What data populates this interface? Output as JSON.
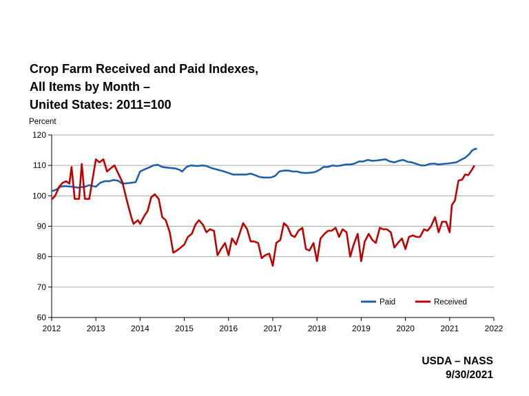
{
  "chart_data": {
    "type": "line",
    "title_lines": [
      "Crop Farm Received and Paid Indexes,",
      "All Items by Month –",
      "United States: 2011=100"
    ],
    "ylabel": "Percent",
    "xlim": [
      2012,
      2022
    ],
    "ylim": [
      60,
      120
    ],
    "x_ticks": [
      2012,
      2013,
      2014,
      2015,
      2016,
      2017,
      2018,
      2019,
      2020,
      2021,
      2022
    ],
    "y_ticks": [
      60,
      70,
      80,
      90,
      100,
      110,
      120
    ],
    "grid": "horizontal",
    "legend_placement": "bottom-right",
    "series": [
      {
        "name": "Paid",
        "color": "#1f5fa8",
        "points": [
          [
            2012.0,
            101.5
          ],
          [
            2012.1,
            102.0
          ],
          [
            2012.2,
            103.0
          ],
          [
            2012.3,
            103.2
          ],
          [
            2012.45,
            103.0
          ],
          [
            2012.6,
            102.7
          ],
          [
            2012.75,
            103.0
          ],
          [
            2012.85,
            103.5
          ],
          [
            2013.0,
            103.0
          ],
          [
            2013.1,
            104.3
          ],
          [
            2013.2,
            104.8
          ],
          [
            2013.3,
            104.8
          ],
          [
            2013.4,
            105.2
          ],
          [
            2013.5,
            105.0
          ],
          [
            2013.6,
            104.0
          ],
          [
            2013.75,
            104.2
          ],
          [
            2013.9,
            104.5
          ],
          [
            2014.0,
            108.0
          ],
          [
            2014.1,
            108.7
          ],
          [
            2014.2,
            109.3
          ],
          [
            2014.3,
            110.0
          ],
          [
            2014.4,
            110.2
          ],
          [
            2014.5,
            109.5
          ],
          [
            2014.65,
            109.2
          ],
          [
            2014.8,
            109.0
          ],
          [
            2014.9,
            108.5
          ],
          [
            2014.95,
            108.0
          ],
          [
            2015.05,
            109.5
          ],
          [
            2015.15,
            110.0
          ],
          [
            2015.3,
            109.8
          ],
          [
            2015.4,
            110.0
          ],
          [
            2015.5,
            109.8
          ],
          [
            2015.6,
            109.2
          ],
          [
            2015.75,
            108.6
          ],
          [
            2015.9,
            108.0
          ],
          [
            2016.0,
            107.5
          ],
          [
            2016.1,
            107.0
          ],
          [
            2016.2,
            107.0
          ],
          [
            2016.3,
            107.0
          ],
          [
            2016.4,
            107.0
          ],
          [
            2016.5,
            107.3
          ],
          [
            2016.6,
            106.8
          ],
          [
            2016.7,
            106.2
          ],
          [
            2016.8,
            106.0
          ],
          [
            2016.95,
            106.0
          ],
          [
            2017.05,
            106.5
          ],
          [
            2017.15,
            108.0
          ],
          [
            2017.25,
            108.3
          ],
          [
            2017.35,
            108.3
          ],
          [
            2017.45,
            108.0
          ],
          [
            2017.55,
            108.0
          ],
          [
            2017.65,
            107.6
          ],
          [
            2017.75,
            107.5
          ],
          [
            2017.85,
            107.6
          ],
          [
            2017.95,
            107.8
          ],
          [
            2018.05,
            108.5
          ],
          [
            2018.15,
            109.5
          ],
          [
            2018.25,
            109.5
          ],
          [
            2018.35,
            110.0
          ],
          [
            2018.45,
            109.8
          ],
          [
            2018.55,
            110.0
          ],
          [
            2018.65,
            110.3
          ],
          [
            2018.75,
            110.3
          ],
          [
            2018.85,
            110.6
          ],
          [
            2018.95,
            111.3
          ],
          [
            2019.05,
            111.3
          ],
          [
            2019.15,
            111.8
          ],
          [
            2019.25,
            111.5
          ],
          [
            2019.35,
            111.6
          ],
          [
            2019.45,
            111.8
          ],
          [
            2019.55,
            112.0
          ],
          [
            2019.65,
            111.3
          ],
          [
            2019.75,
            111.0
          ],
          [
            2019.85,
            111.5
          ],
          [
            2019.95,
            111.8
          ],
          [
            2020.05,
            111.2
          ],
          [
            2020.15,
            111.0
          ],
          [
            2020.25,
            110.5
          ],
          [
            2020.35,
            110.0
          ],
          [
            2020.45,
            110.0
          ],
          [
            2020.55,
            110.5
          ],
          [
            2020.65,
            110.6
          ],
          [
            2020.75,
            110.3
          ],
          [
            2020.85,
            110.5
          ],
          [
            2020.95,
            110.6
          ],
          [
            2021.05,
            110.8
          ],
          [
            2021.15,
            111.0
          ],
          [
            2021.25,
            111.8
          ],
          [
            2021.35,
            112.5
          ],
          [
            2021.45,
            113.8
          ],
          [
            2021.5,
            114.8
          ],
          [
            2021.55,
            115.3
          ],
          [
            2021.62,
            115.5
          ]
        ]
      },
      {
        "name": "Received",
        "color": "#c00000",
        "points": [
          [
            2012.0,
            98.8
          ],
          [
            2012.08,
            100.0
          ],
          [
            2012.17,
            103.0
          ],
          [
            2012.25,
            104.3
          ],
          [
            2012.33,
            104.8
          ],
          [
            2012.4,
            104.0
          ],
          [
            2012.45,
            109.5
          ],
          [
            2012.52,
            99.0
          ],
          [
            2012.62,
            99.0
          ],
          [
            2012.68,
            110.5
          ],
          [
            2012.75,
            99.0
          ],
          [
            2012.85,
            99.0
          ],
          [
            2013.0,
            112.0
          ],
          [
            2013.08,
            111.0
          ],
          [
            2013.17,
            112.0
          ],
          [
            2013.25,
            108.0
          ],
          [
            2013.33,
            109.0
          ],
          [
            2013.42,
            110.0
          ],
          [
            2013.5,
            107.5
          ],
          [
            2013.6,
            104.5
          ],
          [
            2013.7,
            98.5
          ],
          [
            2013.8,
            93.0
          ],
          [
            2013.85,
            90.8
          ],
          [
            2013.95,
            92.0
          ],
          [
            2014.0,
            90.8
          ],
          [
            2014.1,
            93.5
          ],
          [
            2014.17,
            95.0
          ],
          [
            2014.25,
            99.5
          ],
          [
            2014.33,
            100.5
          ],
          [
            2014.42,
            99.0
          ],
          [
            2014.5,
            93.0
          ],
          [
            2014.58,
            92.0
          ],
          [
            2014.67,
            88.0
          ],
          [
            2014.75,
            81.3
          ],
          [
            2014.83,
            82.0
          ],
          [
            2014.92,
            83.0
          ],
          [
            2015.0,
            84.0
          ],
          [
            2015.08,
            86.5
          ],
          [
            2015.17,
            87.5
          ],
          [
            2015.25,
            90.5
          ],
          [
            2015.33,
            92.0
          ],
          [
            2015.42,
            90.5
          ],
          [
            2015.5,
            88.0
          ],
          [
            2015.58,
            89.0
          ],
          [
            2015.67,
            88.5
          ],
          [
            2015.75,
            80.5
          ],
          [
            2015.83,
            82.5
          ],
          [
            2015.92,
            84.5
          ],
          [
            2016.0,
            80.5
          ],
          [
            2016.08,
            86.0
          ],
          [
            2016.17,
            84.0
          ],
          [
            2016.25,
            87.5
          ],
          [
            2016.33,
            91.0
          ],
          [
            2016.42,
            89.0
          ],
          [
            2016.5,
            85.0
          ],
          [
            2016.58,
            85.0
          ],
          [
            2016.67,
            84.5
          ],
          [
            2016.75,
            79.5
          ],
          [
            2016.83,
            80.5
          ],
          [
            2016.92,
            81.0
          ],
          [
            2017.0,
            77.0
          ],
          [
            2017.08,
            84.5
          ],
          [
            2017.17,
            85.5
          ],
          [
            2017.25,
            91.0
          ],
          [
            2017.33,
            90.0
          ],
          [
            2017.42,
            87.0
          ],
          [
            2017.5,
            86.5
          ],
          [
            2017.58,
            88.5
          ],
          [
            2017.67,
            89.5
          ],
          [
            2017.75,
            82.5
          ],
          [
            2017.83,
            82.0
          ],
          [
            2017.92,
            84.5
          ],
          [
            2018.0,
            78.5
          ],
          [
            2018.08,
            86.0
          ],
          [
            2018.17,
            87.5
          ],
          [
            2018.25,
            88.5
          ],
          [
            2018.33,
            88.5
          ],
          [
            2018.42,
            89.5
          ],
          [
            2018.5,
            86.5
          ],
          [
            2018.58,
            89.0
          ],
          [
            2018.67,
            88.0
          ],
          [
            2018.75,
            80.0
          ],
          [
            2018.83,
            84.0
          ],
          [
            2018.92,
            87.5
          ],
          [
            2019.0,
            78.5
          ],
          [
            2019.08,
            85.0
          ],
          [
            2019.17,
            87.5
          ],
          [
            2019.25,
            85.5
          ],
          [
            2019.33,
            84.5
          ],
          [
            2019.42,
            89.5
          ],
          [
            2019.5,
            89.0
          ],
          [
            2019.58,
            89.0
          ],
          [
            2019.67,
            88.0
          ],
          [
            2019.75,
            83.0
          ],
          [
            2019.83,
            84.5
          ],
          [
            2019.92,
            86.0
          ],
          [
            2020.0,
            82.5
          ],
          [
            2020.08,
            86.5
          ],
          [
            2020.17,
            87.0
          ],
          [
            2020.25,
            86.5
          ],
          [
            2020.33,
            86.5
          ],
          [
            2020.42,
            89.0
          ],
          [
            2020.5,
            88.5
          ],
          [
            2020.58,
            90.0
          ],
          [
            2020.67,
            93.0
          ],
          [
            2020.75,
            88.0
          ],
          [
            2020.83,
            91.5
          ],
          [
            2020.92,
            91.5
          ],
          [
            2021.0,
            88.0
          ],
          [
            2021.05,
            97.0
          ],
          [
            2021.12,
            98.5
          ],
          [
            2021.2,
            105.0
          ],
          [
            2021.28,
            105.3
          ],
          [
            2021.35,
            107.0
          ],
          [
            2021.42,
            106.8
          ],
          [
            2021.5,
            108.5
          ],
          [
            2021.56,
            110.0
          ]
        ]
      }
    ]
  },
  "footer": {
    "source": "USDA – NASS",
    "date": "9/30/2021"
  }
}
